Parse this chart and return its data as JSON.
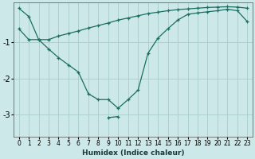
{
  "x": [
    0,
    1,
    2,
    3,
    4,
    5,
    6,
    7,
    8,
    9,
    10,
    11,
    12,
    13,
    14,
    15,
    16,
    17,
    18,
    19,
    20,
    21,
    22,
    23
  ],
  "line1_x": [
    0,
    1,
    2,
    3,
    4,
    5,
    6,
    7,
    8,
    9,
    10,
    11,
    12,
    13,
    14,
    15,
    16,
    17,
    18,
    19,
    20,
    21,
    22,
    23
  ],
  "line1_y": [
    -0.05,
    -0.28,
    -0.92,
    -1.18,
    -1.42,
    -1.62,
    -1.82,
    -2.42,
    -2.58,
    -2.58,
    -2.82,
    -2.58,
    -2.32,
    -1.3,
    -0.88,
    -0.62,
    -0.38,
    -0.22,
    -0.18,
    -0.15,
    -0.12,
    -0.08,
    -0.12,
    -0.42
  ],
  "line2_x": [
    0,
    1,
    2,
    3,
    4,
    5,
    6,
    7,
    8,
    9,
    10,
    11,
    12,
    13,
    14,
    15,
    16,
    17,
    18,
    19,
    20,
    21,
    22,
    23
  ],
  "line2_y": [
    -0.62,
    -0.92,
    -0.92,
    -0.92,
    -0.82,
    -0.75,
    -0.68,
    -0.6,
    -0.53,
    -0.46,
    -0.38,
    -0.32,
    -0.26,
    -0.2,
    -0.16,
    -0.12,
    -0.09,
    -0.07,
    -0.05,
    -0.03,
    -0.02,
    -0.01,
    -0.02,
    -0.05
  ],
  "line3_x": [
    9,
    10
  ],
  "line3_y": [
    -3.08,
    -3.05
  ],
  "bg_color": "#cce8e8",
  "line_color": "#1a6e62",
  "grid_color": "#aacccc",
  "xlabel": "Humidex (Indice chaleur)",
  "xlim": [
    -0.5,
    23.5
  ],
  "ylim": [
    -3.6,
    0.1
  ],
  "yticks": [
    -3,
    -2,
    -1
  ],
  "xticks": [
    0,
    1,
    2,
    3,
    4,
    5,
    6,
    7,
    8,
    9,
    10,
    11,
    12,
    13,
    14,
    15,
    16,
    17,
    18,
    19,
    20,
    21,
    22,
    23
  ],
  "xlabel_fontsize": 6.5,
  "tick_fontsize": 5.5,
  "ytick_fontsize": 7
}
